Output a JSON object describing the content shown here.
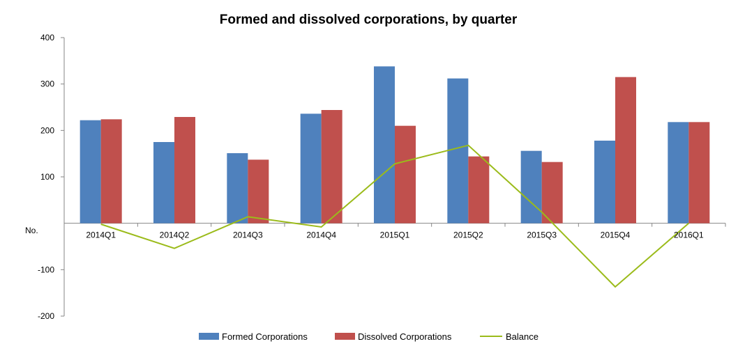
{
  "chart_data": {
    "type": "bar",
    "title": "Formed and dissolved corporations, by quarter",
    "ylabel": "No.",
    "xlabel": "",
    "categories": [
      "2014Q1",
      "2014Q2",
      "2014Q3",
      "2014Q4",
      "2015Q1",
      "2015Q2",
      "2015Q3",
      "2015Q4",
      "2016Q1"
    ],
    "ylim": [
      -200,
      400
    ],
    "yticks": [
      -200,
      -100,
      100,
      200,
      300,
      400
    ],
    "grid": false,
    "legend_position": "bottom",
    "series": [
      {
        "name": "Formed Corporations",
        "kind": "bar",
        "color": "#4f81bd",
        "values": [
          222,
          175,
          151,
          236,
          338,
          312,
          156,
          178,
          218
        ]
      },
      {
        "name": "Dissolved Corporations",
        "kind": "bar",
        "color": "#c0504d",
        "values": [
          224,
          229,
          137,
          244,
          210,
          144,
          132,
          315,
          218
        ]
      },
      {
        "name": "Balance",
        "kind": "line",
        "color": "#9bbb1a",
        "values": [
          -2,
          -54,
          14,
          -8,
          128,
          168,
          24,
          -137,
          0
        ]
      }
    ]
  }
}
